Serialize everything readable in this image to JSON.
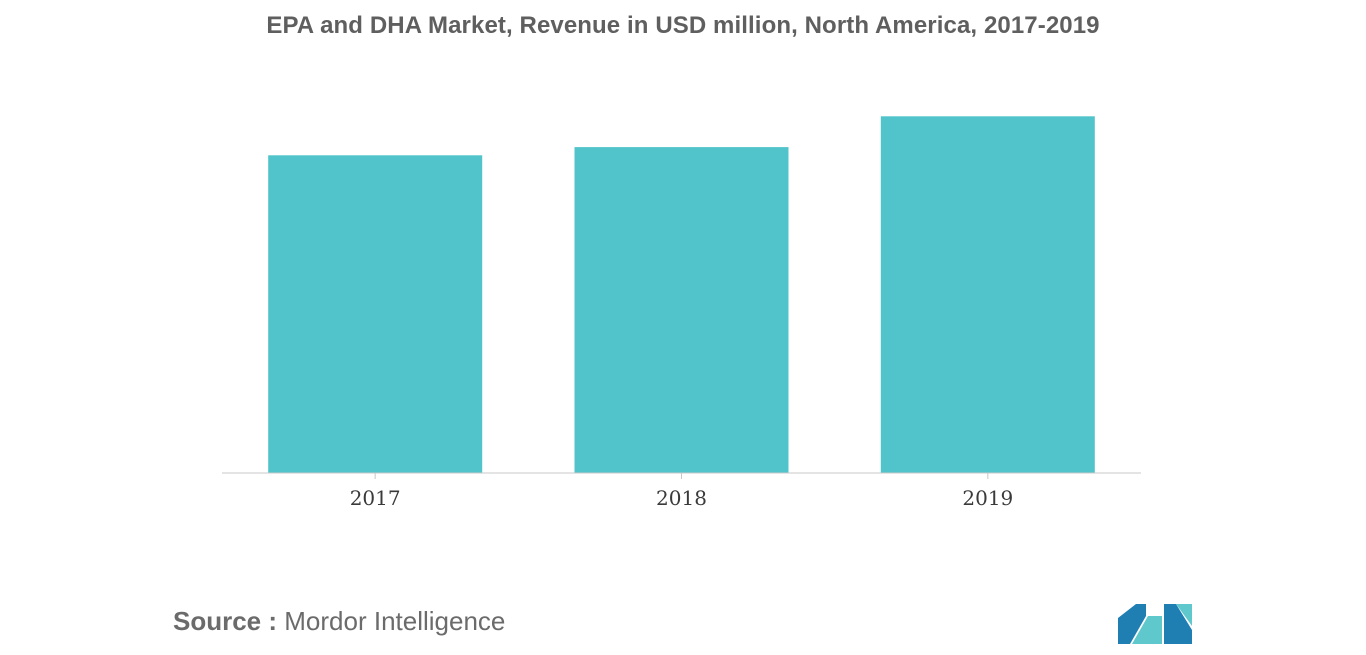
{
  "chart_data": {
    "type": "bar",
    "title": "EPA and DHA Market, Revenue in USD million, North America, 2017-2019",
    "xlabel": "",
    "ylabel": "",
    "categories": [
      "2017",
      "2018",
      "2019"
    ],
    "values": [
      310,
      318,
      348
    ],
    "ylim": [
      0,
      360
    ],
    "grid": false,
    "legend": "none",
    "bar_color": "#50C4CA",
    "axis_line_color": "#c8c8c8"
  },
  "footer": {
    "source_key": "Source :",
    "source_value": "Mordor Intelligence",
    "logo_icon": "mordor-intelligence-logo-icon",
    "logo_colors": [
      "#1f7fb3",
      "#5ec8cc"
    ]
  }
}
